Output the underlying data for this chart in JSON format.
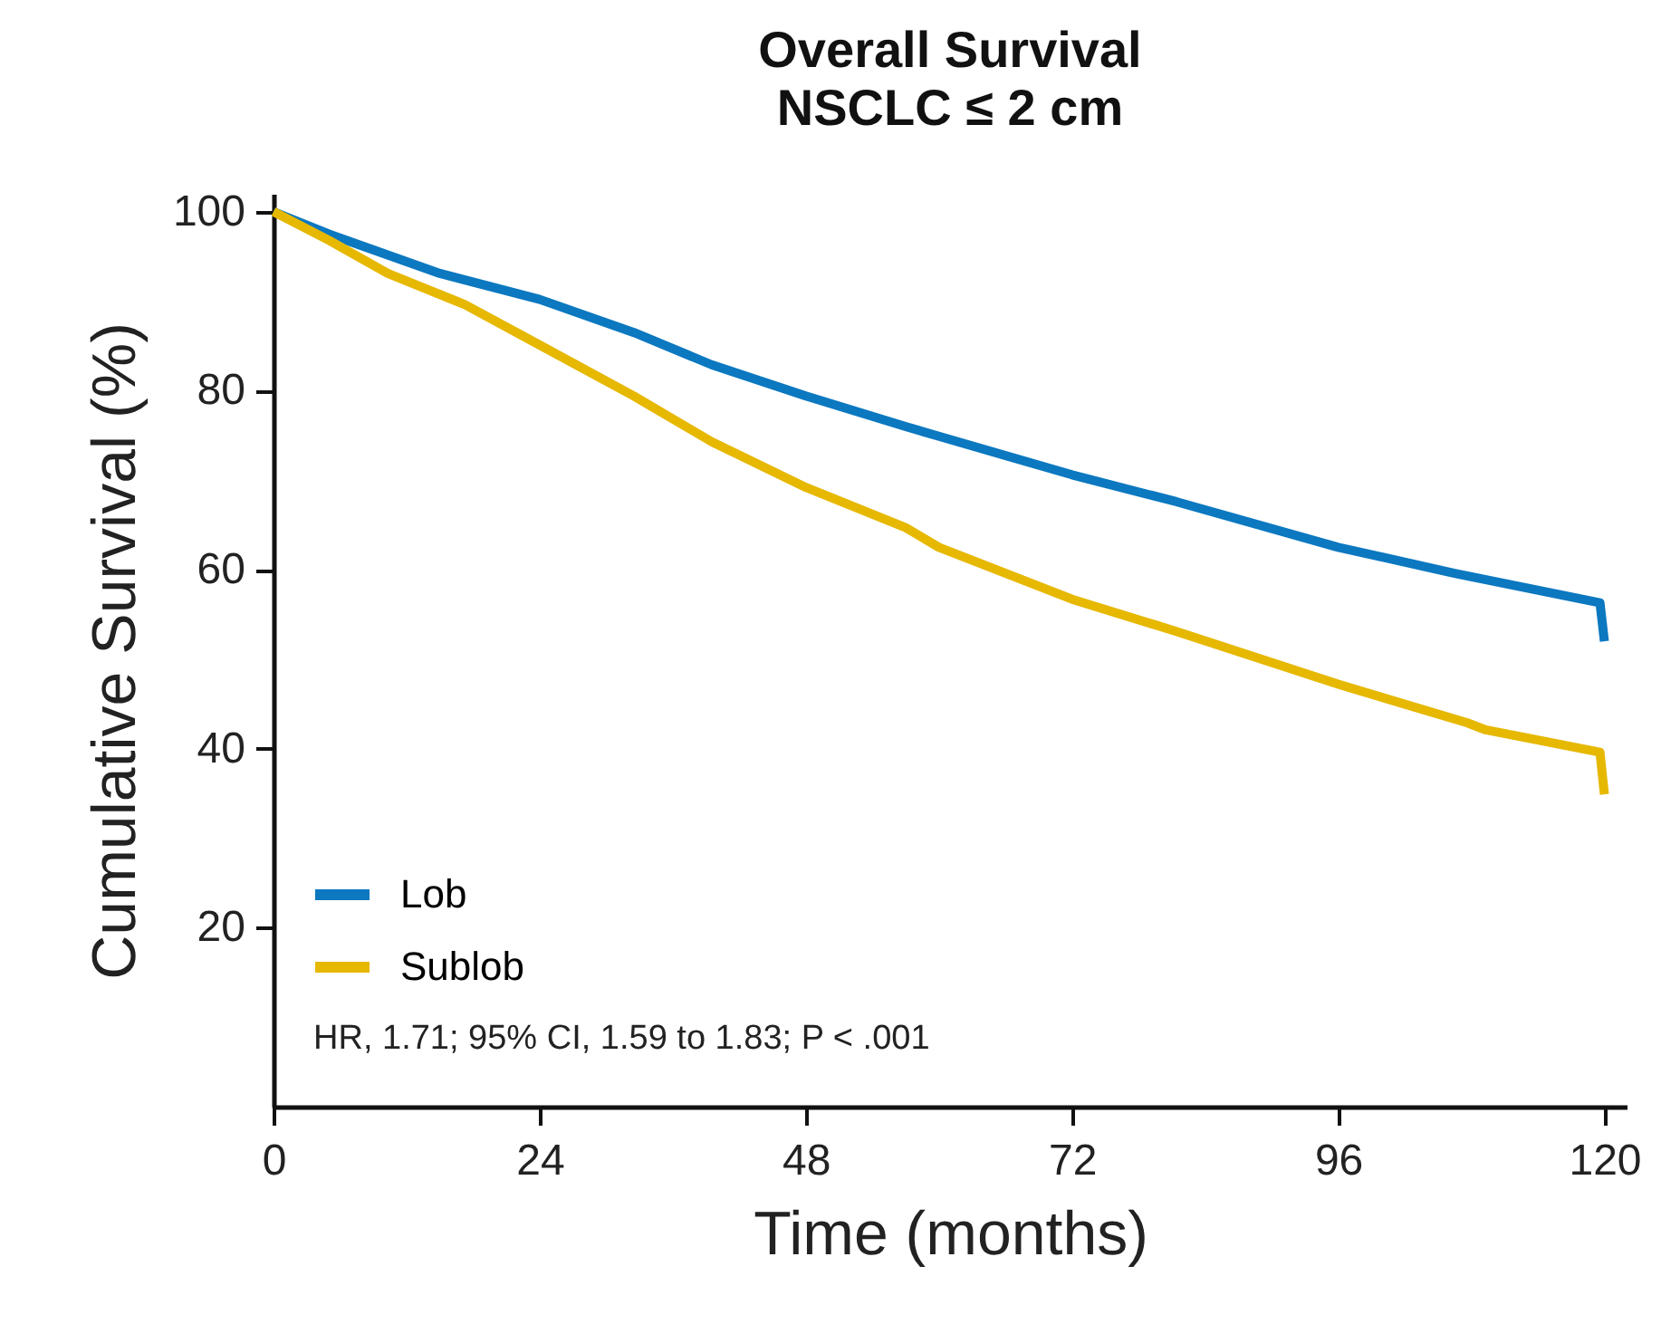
{
  "chart_data": {
    "type": "line",
    "title": "Overall Survival",
    "subtitle": "NSCLC ≤ 2 cm",
    "xlabel": "Time (months)",
    "ylabel": "Cumulative Survival (%)",
    "series": [
      {
        "name": "Lob",
        "color": "#0b78c0",
        "x": [
          0,
          5,
          15,
          24,
          32.5,
          39.5,
          48,
          57,
          60,
          72,
          81.4,
          96,
          106.5,
          119.6,
          120
        ],
        "values": [
          100,
          97.5,
          93.1,
          90.2,
          86.5,
          82.9,
          79.4,
          76,
          74.9,
          70.6,
          67.6,
          62.5,
          59.6,
          56.3,
          52
        ]
      },
      {
        "name": "Sublob",
        "color": "#e6b800",
        "x": [
          0,
          5,
          10.3,
          17.3,
          24,
          32.5,
          39.5,
          48,
          57,
          60,
          72,
          81.4,
          96,
          107.6,
          109.3,
          119.6,
          120
        ],
        "values": [
          100,
          96.8,
          93.1,
          89.6,
          85.1,
          79.4,
          74.3,
          69.2,
          64.7,
          62.5,
          56.7,
          53.1,
          47.2,
          42.9,
          42.1,
          39.6,
          34.9
        ]
      }
    ],
    "xlim": [
      0,
      122
    ],
    "ylim": [
      0,
      102
    ],
    "xticks": [
      0,
      24,
      48,
      72,
      96,
      120
    ],
    "yticks": [
      20,
      40,
      60,
      80,
      100
    ],
    "grid": false,
    "legend": "bottom left",
    "line_style": "solid",
    "annotations": [
      "HR, 1.71; 95% CI, 1.59 to 1.83; P < .001"
    ]
  }
}
